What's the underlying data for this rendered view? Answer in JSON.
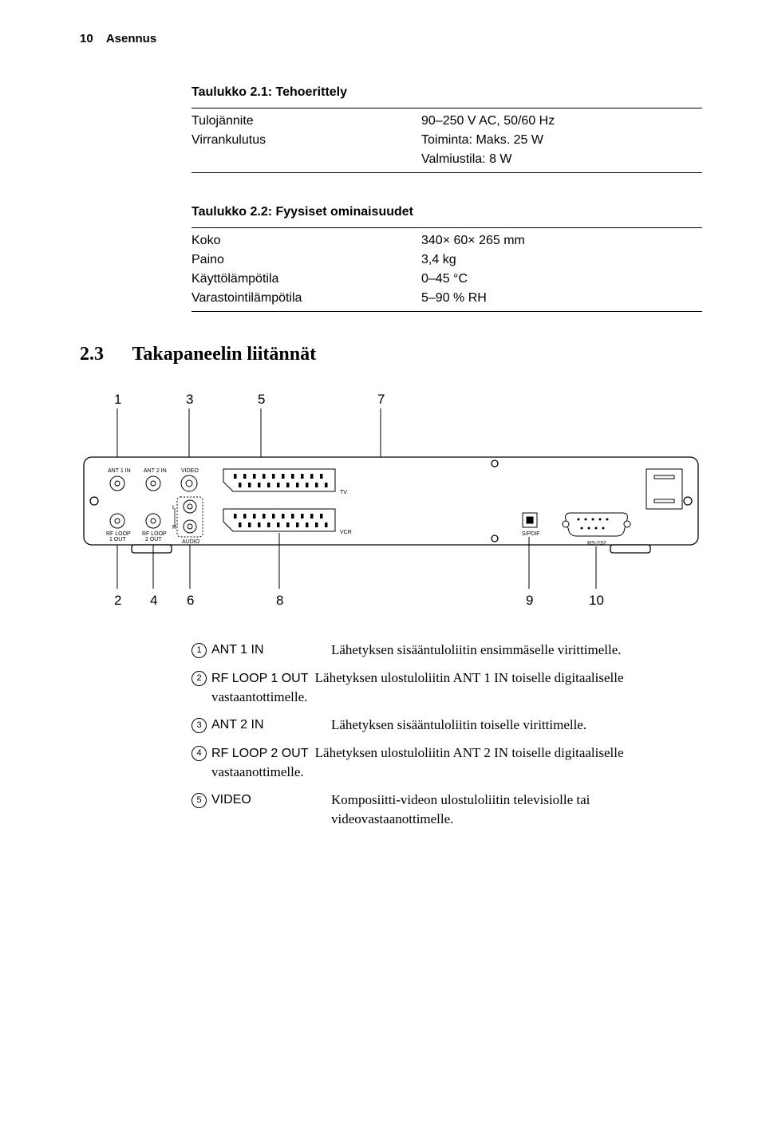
{
  "header": {
    "page_number": "10",
    "section_name": "Asennus"
  },
  "table1": {
    "caption": "Taulukko 2.1: Tehoerittely",
    "rows": [
      {
        "label": "Tulojännite",
        "value": "90–250 V AC, 50/60 Hz"
      },
      {
        "label": "Virrankulutus",
        "value": "Toiminta: Maks. 25 W"
      },
      {
        "label": "",
        "value": "Valmiustila: 8 W"
      }
    ]
  },
  "table2": {
    "caption": "Taulukko 2.2: Fyysiset ominaisuudet",
    "rows": [
      {
        "label": "Koko",
        "value": "340× 60× 265 mm"
      },
      {
        "label": "Paino",
        "value": "3,4 kg"
      },
      {
        "label": "Käyttölämpötila",
        "value": "0–45 °C"
      },
      {
        "label": "Varastointilämpötila",
        "value": "5–90 % RH"
      }
    ]
  },
  "section23": {
    "number": "2.3",
    "title": "Takapaneelin liitännät"
  },
  "diagram": {
    "top_callouts": [
      "1",
      "3",
      "5",
      "7"
    ],
    "bottom_callouts": [
      "2",
      "4",
      "6",
      "8",
      "9",
      "10"
    ],
    "labels": {
      "ant1in": "ANT 1 IN",
      "ant2in": "ANT 2 IN",
      "video": "VIDEO",
      "tv": "TV",
      "vcr": "VCR",
      "spdif": "S/PDIF",
      "rs232": "RS-232",
      "rfloop1": "RF LOOP",
      "rfloop1b": "1 OUT",
      "rfloop2": "RF LOOP",
      "rfloop2b": "2 OUT",
      "audio": "AUDIO",
      "L": "L",
      "R": "R"
    },
    "colors": {
      "stroke": "#000000",
      "bg": "#ffffff"
    }
  },
  "definitions": [
    {
      "num": "1",
      "label": "ANT 1 IN",
      "text": "Lähetyksen sisääntuloliitin ensimmäselle virittimelle.",
      "inline": false
    },
    {
      "num": "2",
      "label": "RF LOOP 1 OUT",
      "text": "Lähetyksen ulostuloliitin ANT 1 IN toiselle digitaaliselle vastaantottimelle.",
      "inline": true
    },
    {
      "num": "3",
      "label": "ANT 2 IN",
      "text": "Lähetyksen sisääntuloliitin toiselle virittimelle.",
      "inline": false
    },
    {
      "num": "4",
      "label": "RF LOOP 2 OUT",
      "text": "Lähetyksen ulostuloliitin ANT 2 IN toiselle digitaaliselle vastaanottimelle.",
      "inline": true
    },
    {
      "num": "5",
      "label": "VIDEO",
      "text": "Komposiitti-videon ulostuloliitin televisiolle tai videovastaanottimelle.",
      "inline": false
    }
  ]
}
